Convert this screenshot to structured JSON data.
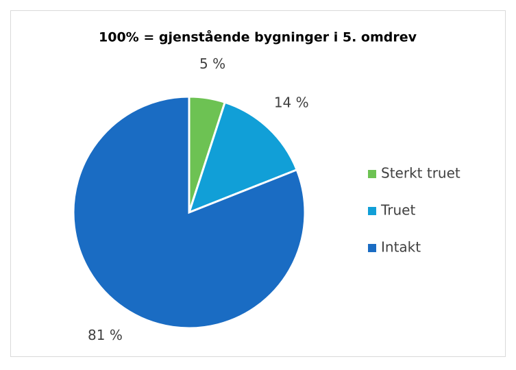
{
  "chart_data": {
    "type": "pie",
    "title": "100% = gjenstående bygninger i 5. omdrev",
    "categories": [
      "Sterkt truet",
      "Truet",
      "Intakt"
    ],
    "values": [
      5,
      14,
      81
    ],
    "value_labels": [
      "5 %",
      "14 %",
      "81 %"
    ],
    "colors": [
      "#6dc253",
      "#119fd7",
      "#1a6cc3"
    ],
    "legend": "right"
  }
}
